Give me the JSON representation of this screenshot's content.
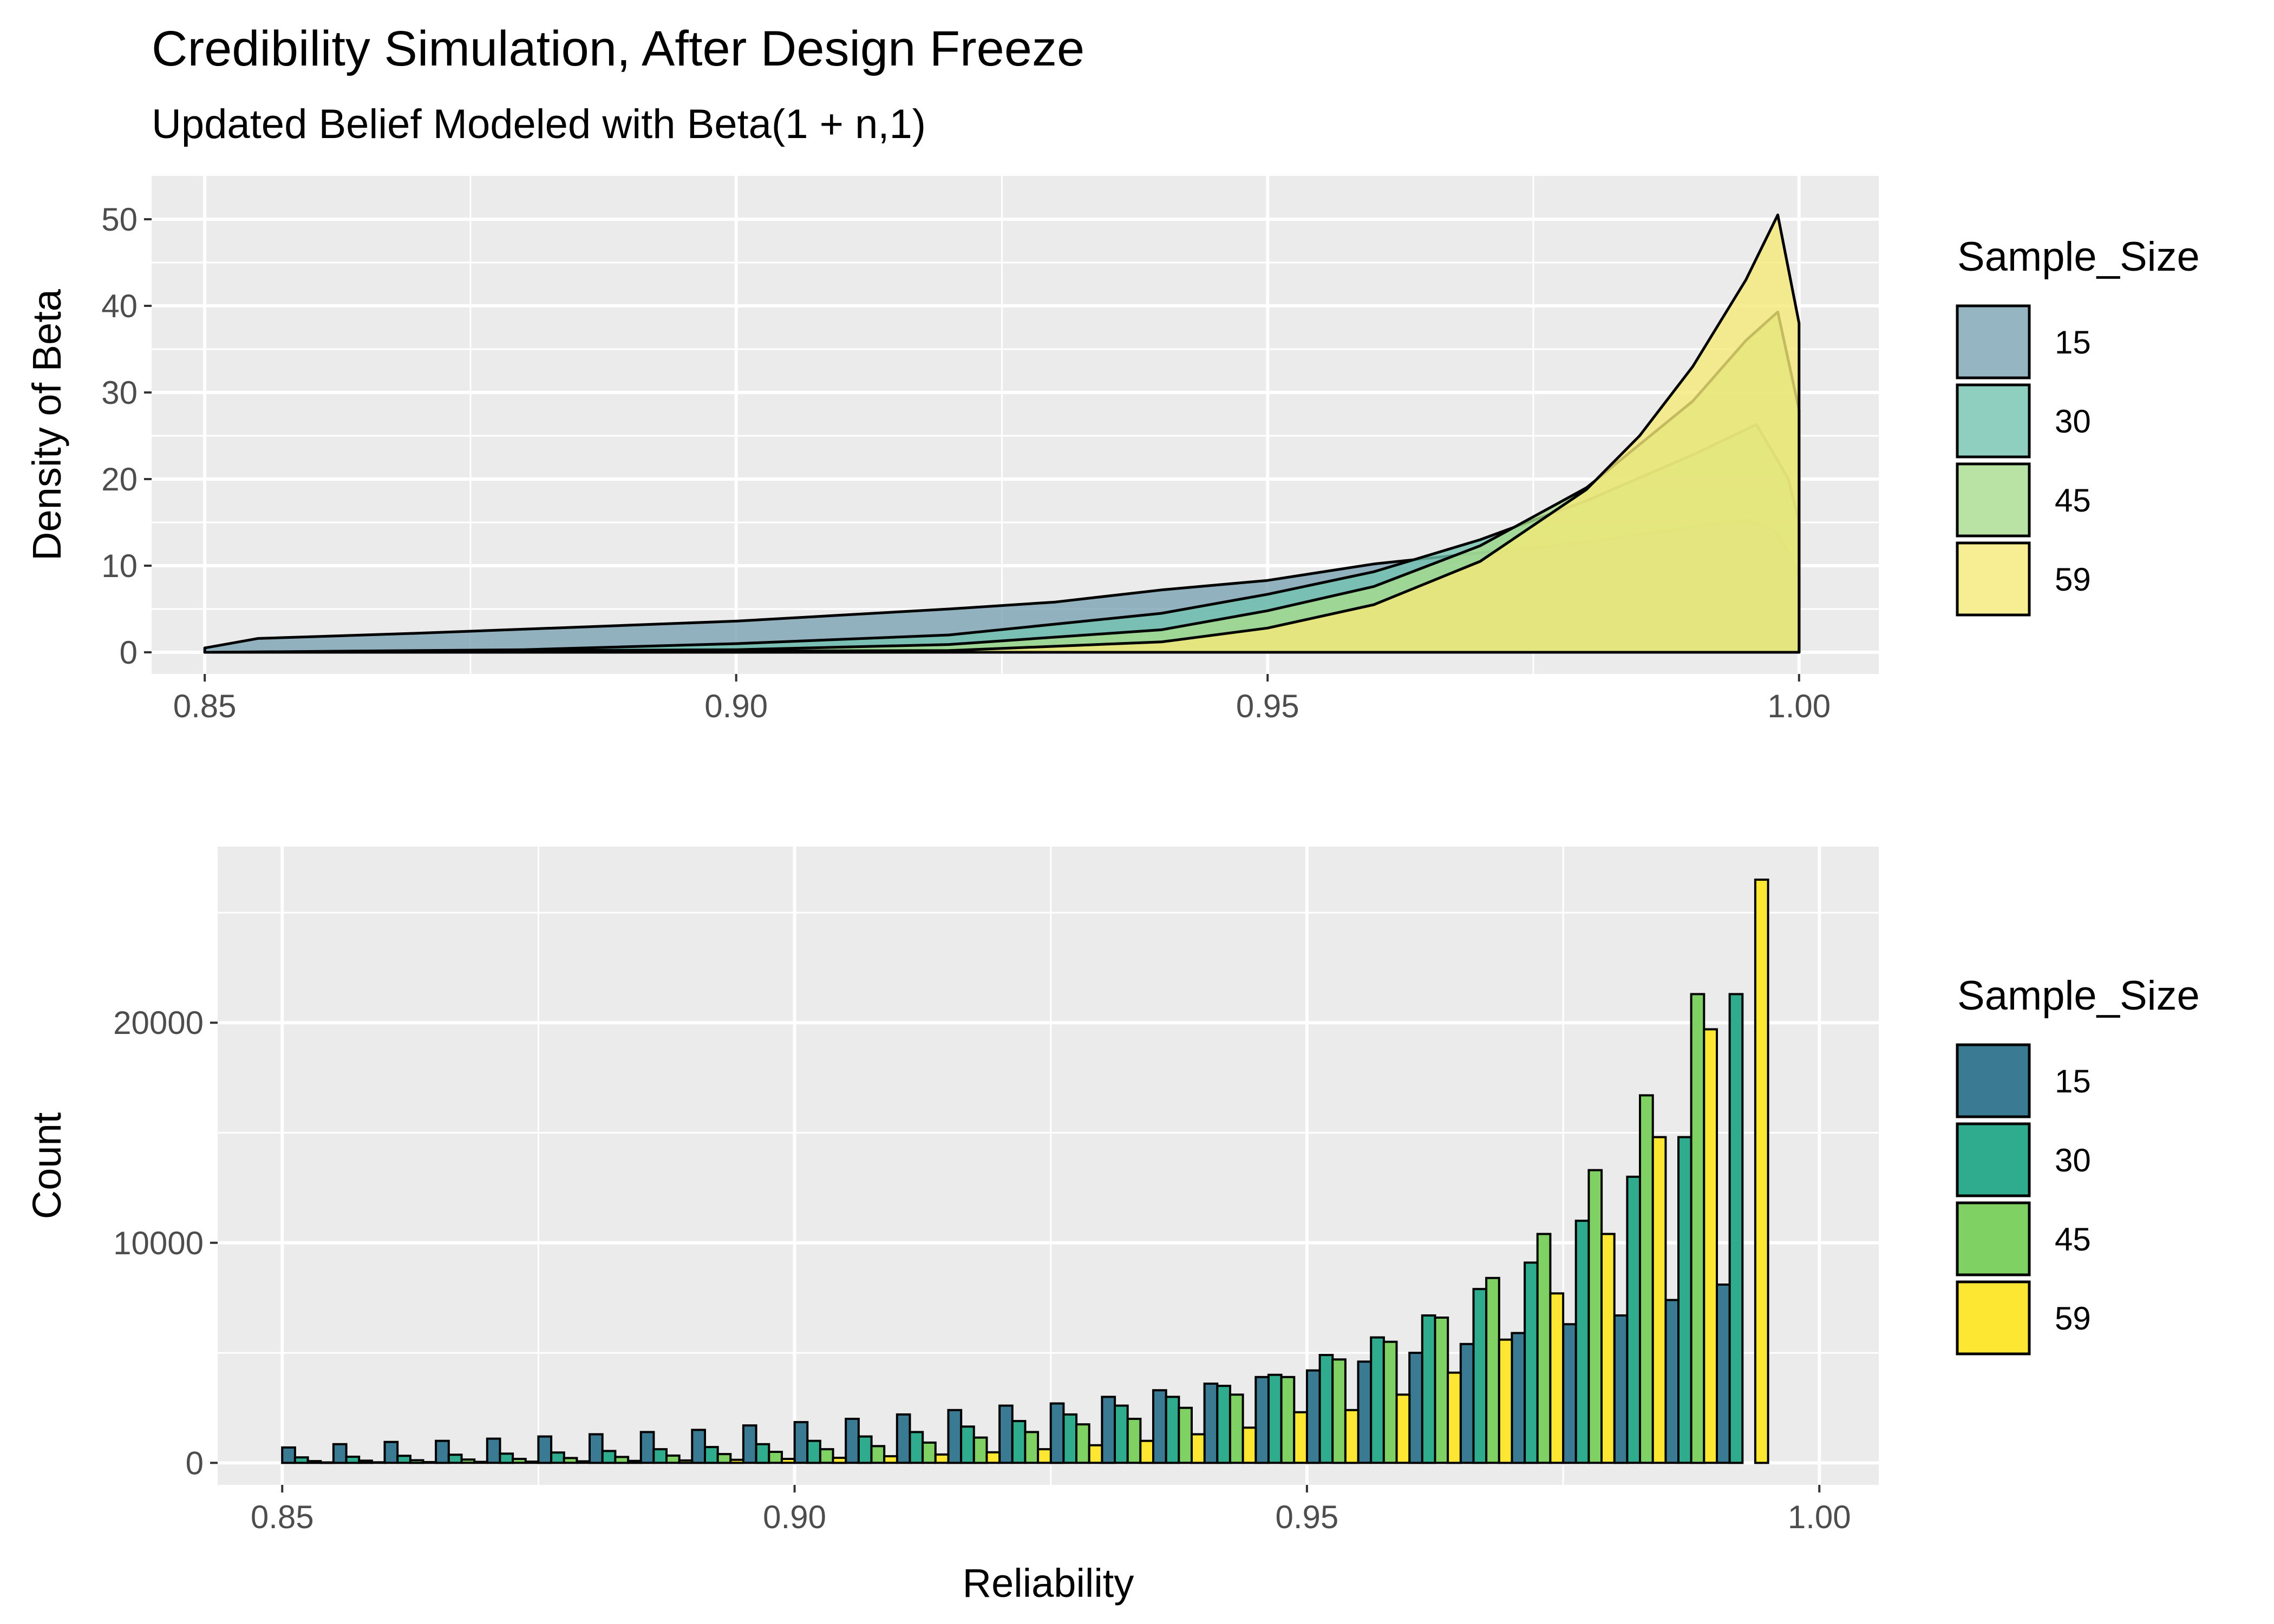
{
  "title": "Credibility Simulation, After Design Freeze",
  "subtitle": "Updated Belief Modeled with Beta(1 + n,1)",
  "chart_data": [
    {
      "type": "area",
      "xlabel": "",
      "ylabel": "Density of Beta",
      "xlim": [
        0.85,
        1.0
      ],
      "ylim": [
        0,
        50
      ],
      "x_ticks": [
        "0.85",
        "0.90",
        "0.95",
        "1.00"
      ],
      "y_ticks": [
        "0",
        "10",
        "20",
        "30",
        "40",
        "50"
      ],
      "grid": true,
      "legend": {
        "title": "Sample_Size",
        "position": "right"
      },
      "series": [
        {
          "name": "15",
          "color": "#7aa3b4",
          "points": [
            [
              0.85,
              0.5
            ],
            [
              0.855,
              1.6
            ],
            [
              0.87,
              2.2
            ],
            [
              0.9,
              3.6
            ],
            [
              0.92,
              5.0
            ],
            [
              0.93,
              5.8
            ],
            [
              0.94,
              7.2
            ],
            [
              0.95,
              8.3
            ],
            [
              0.96,
              10.2
            ],
            [
              0.97,
              11.5
            ],
            [
              0.98,
              12.7
            ],
            [
              0.99,
              14.5
            ],
            [
              0.995,
              15.3
            ],
            [
              0.998,
              13.8
            ],
            [
              1.0,
              9.0
            ]
          ]
        },
        {
          "name": "30",
          "color": "#73c3b0",
          "points": [
            [
              0.85,
              0.0
            ],
            [
              0.88,
              0.3
            ],
            [
              0.9,
              1.0
            ],
            [
              0.92,
              2.0
            ],
            [
              0.94,
              4.5
            ],
            [
              0.95,
              6.7
            ],
            [
              0.96,
              9.3
            ],
            [
              0.97,
              13.0
            ],
            [
              0.98,
              17.5
            ],
            [
              0.99,
              22.8
            ],
            [
              0.996,
              26.3
            ],
            [
              0.999,
              20.0
            ],
            [
              1.0,
              15.0
            ]
          ]
        },
        {
          "name": "45",
          "color": "#a7dc8e",
          "points": [
            [
              0.85,
              0.0
            ],
            [
              0.9,
              0.3
            ],
            [
              0.92,
              0.9
            ],
            [
              0.94,
              2.6
            ],
            [
              0.95,
              4.8
            ],
            [
              0.96,
              7.6
            ],
            [
              0.97,
              12.3
            ],
            [
              0.98,
              19.0
            ],
            [
              0.99,
              29.0
            ],
            [
              0.995,
              36.0
            ],
            [
              0.998,
              39.3
            ],
            [
              1.0,
              28.0
            ]
          ]
        },
        {
          "name": "59",
          "color": "#f5e978",
          "points": [
            [
              0.85,
              0.0
            ],
            [
              0.92,
              0.2
            ],
            [
              0.94,
              1.2
            ],
            [
              0.95,
              2.8
            ],
            [
              0.96,
              5.5
            ],
            [
              0.97,
              10.5
            ],
            [
              0.98,
              18.8
            ],
            [
              0.985,
              25.0
            ],
            [
              0.99,
              33.0
            ],
            [
              0.995,
              43.0
            ],
            [
              0.998,
              50.5
            ],
            [
              1.0,
              38.0
            ]
          ]
        }
      ]
    },
    {
      "type": "bar",
      "xlabel": "Reliability",
      "ylabel": "Count",
      "xlim": [
        0.85,
        1.0
      ],
      "ylim": [
        0,
        26500
      ],
      "x_ticks": [
        "0.85",
        "0.90",
        "0.95",
        "1.00"
      ],
      "y_ticks": [
        "0",
        "10000",
        "20000"
      ],
      "y_tick_values": [
        0,
        10000,
        20000
      ],
      "grid": true,
      "legend": {
        "title": "Sample_Size",
        "position": "right"
      },
      "bin_start": 0.85,
      "bin_width": 0.005,
      "series": [
        {
          "name": "15",
          "color": "#3a7b93",
          "values": [
            700,
            850,
            950,
            1000,
            1100,
            1200,
            1300,
            1400,
            1500,
            1700,
            1850,
            2000,
            2200,
            2400,
            2600,
            2700,
            3000,
            3300,
            3600,
            3900,
            4200,
            4600,
            5000,
            5400,
            5900,
            6300,
            6700,
            7400,
            8100
          ]
        },
        {
          "name": "30",
          "color": "#2fab8e",
          "values": [
            250,
            280,
            320,
            370,
            420,
            470,
            540,
            620,
            720,
            850,
            1000,
            1200,
            1400,
            1650,
            1900,
            2200,
            2600,
            3000,
            3500,
            4000,
            4900,
            5700,
            6700,
            7900,
            9100,
            11000,
            13000,
            14800,
            21300
          ]
        },
        {
          "name": "45",
          "color": "#7fd163",
          "values": [
            80,
            100,
            120,
            150,
            180,
            220,
            270,
            330,
            400,
            500,
            620,
            760,
            920,
            1150,
            1400,
            1750,
            2000,
            2500,
            3100,
            3900,
            4700,
            5500,
            6600,
            8400,
            10400,
            13300,
            16700,
            21300,
            0
          ]
        },
        {
          "name": "59",
          "color": "#fde733",
          "values": [
            20,
            25,
            35,
            45,
            55,
            70,
            90,
            110,
            140,
            180,
            230,
            300,
            380,
            480,
            620,
            800,
            1000,
            1300,
            1600,
            2300,
            2400,
            3100,
            4100,
            5600,
            7700,
            10400,
            14800,
            19700,
            26500
          ]
        }
      ]
    }
  ]
}
